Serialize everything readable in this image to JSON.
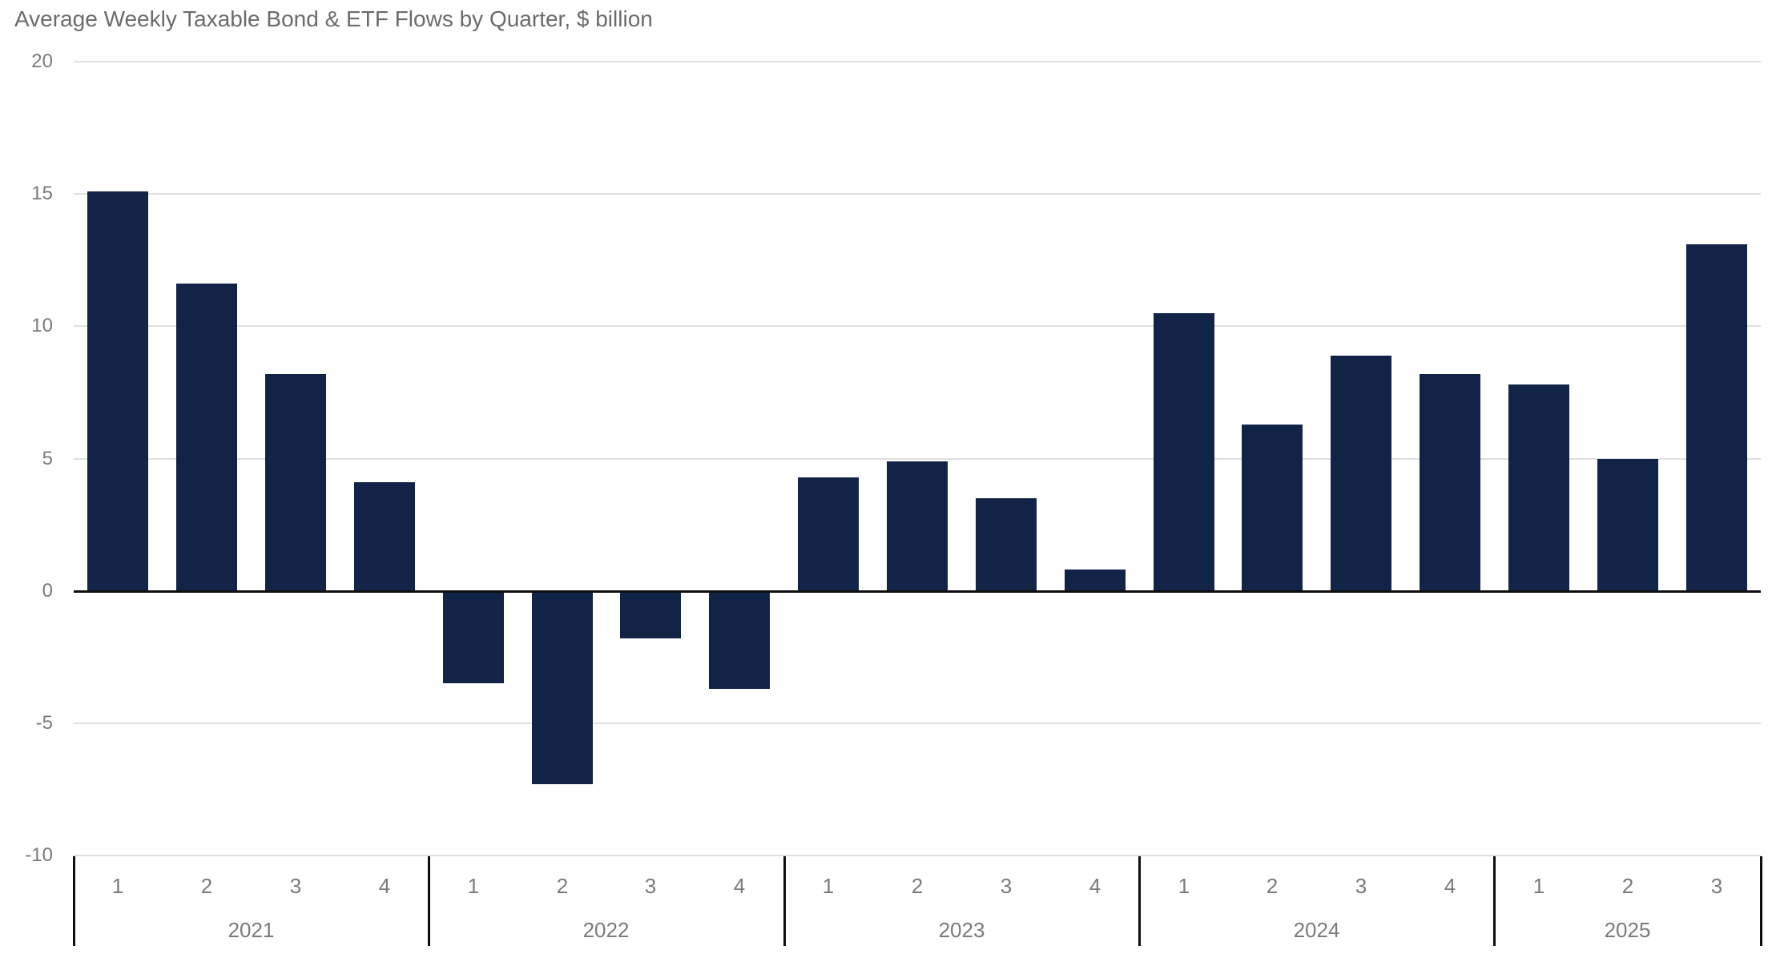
{
  "chart_data": {
    "type": "bar",
    "title": "Average Weekly Taxable Bond & ETF Flows by Quarter, $ billion",
    "xlabel": "",
    "ylabel": "",
    "ylim": [
      -10,
      20
    ],
    "grid": "horizontal",
    "legend": "none",
    "y_ticks": [
      {
        "label": "20",
        "value": 20
      },
      {
        "label": "15",
        "value": 15
      },
      {
        "label": "10",
        "value": 10
      },
      {
        "label": "5",
        "value": 5
      },
      {
        "label": "0",
        "value": 0
      },
      {
        "label": "-5",
        "value": -5
      },
      {
        "label": "-10",
        "value": -10
      }
    ],
    "groups": [
      {
        "year": "2021",
        "quarter_labels": [
          "1",
          "2",
          "3",
          "4"
        ],
        "values": [
          15.1,
          11.6,
          8.2,
          4.1
        ]
      },
      {
        "year": "2022",
        "quarter_labels": [
          "1",
          "2",
          "3",
          "4"
        ],
        "values": [
          -3.5,
          -7.3,
          -1.8,
          -3.7
        ]
      },
      {
        "year": "2023",
        "quarter_labels": [
          "1",
          "2",
          "3",
          "4"
        ],
        "values": [
          4.3,
          4.9,
          3.5,
          0.8
        ]
      },
      {
        "year": "2024",
        "quarter_labels": [
          "1",
          "2",
          "3",
          "4"
        ],
        "values": [
          10.5,
          6.3,
          8.9,
          8.2
        ]
      },
      {
        "year": "2025",
        "quarter_labels": [
          "1",
          "2",
          "3"
        ],
        "values": [
          7.8,
          5.0,
          13.1
        ]
      }
    ],
    "colors": {
      "bar": "#122348",
      "gridline": "#e0e0e0",
      "zero_axis": "#0e0e0e",
      "separator": "#0e0e0e",
      "title_text": "#6b6b6b",
      "tick_text": "#7b7b7b",
      "background": "#ffffff"
    }
  }
}
